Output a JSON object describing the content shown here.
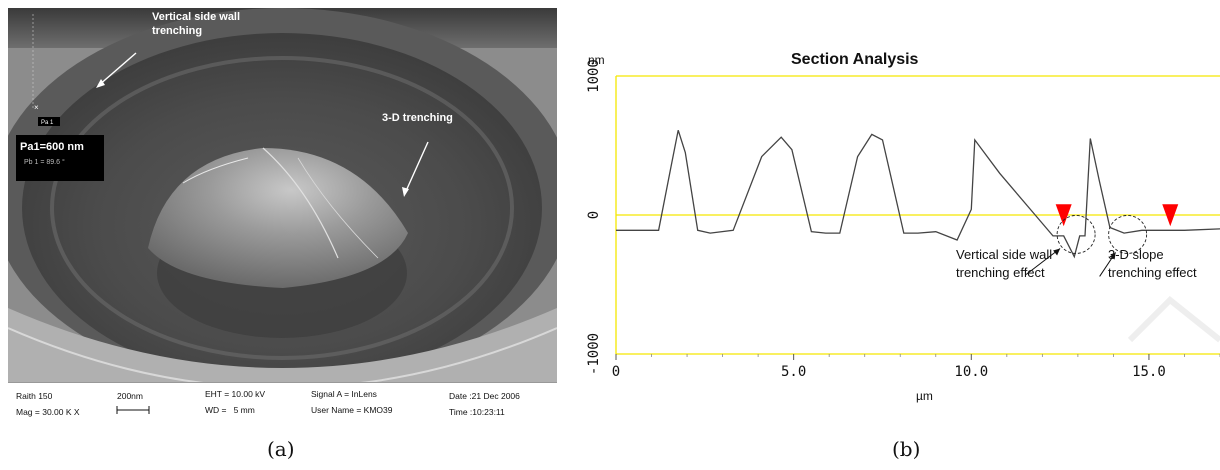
{
  "panel_a": {
    "caption": "(a)",
    "labels": {
      "vertical_trenching": "Vertical side wall\ntrenching",
      "trenching_3d": "3-D trenching",
      "pa_main": "Pa1=600 nm",
      "pa_sub": "Pb 1 = 89.6 °",
      "marker": "Pa 1"
    },
    "databar": {
      "instrument": "Raith 150",
      "mag": "Mag = 30.00 K X",
      "scale": "200nm",
      "eht": "EHT = 10.00 kV",
      "wd": "WD =   5 mm",
      "signal": "Signal A = InLens",
      "user": "User Name = KMO39",
      "date": "Date :21 Dec 2006",
      "time": "Time :10:23:11"
    }
  },
  "panel_b": {
    "caption": "(b)",
    "chart_data": {
      "type": "line",
      "title": "Section Analysis",
      "ylabel_unit": "nm",
      "xlabel": "µm",
      "xlim": [
        0,
        17
      ],
      "ylim": [
        -1000,
        1000
      ],
      "xticks": [
        "0",
        "5.0",
        "10.0",
        "15.0"
      ],
      "xtick_values": [
        0,
        5,
        10,
        15
      ],
      "yticks": [
        "1000",
        "0",
        "-1000"
      ],
      "ytick_values": [
        1000,
        0,
        -1000
      ],
      "series": [
        {
          "x": [
            0,
            1.2,
            1.55,
            1.75,
            1.95,
            2.3,
            2.65,
            3.3,
            4.1,
            4.65,
            4.95,
            5.5,
            5.9,
            6.3,
            6.8,
            7.2,
            7.5,
            8.1,
            8.5,
            9.0,
            9.6,
            10.0,
            10.1,
            10.8,
            11.8,
            12.3,
            12.6,
            12.9,
            13.05,
            13.2,
            13.35,
            13.6,
            13.9,
            14.3,
            14.8,
            16.0,
            17.0
          ],
          "y": [
            -110,
            -110,
            350,
            610,
            450,
            -110,
            -130,
            -110,
            420,
            560,
            470,
            -120,
            -130,
            -130,
            420,
            580,
            540,
            -130,
            -130,
            -120,
            -180,
            40,
            540,
            300,
            0,
            -150,
            -150,
            -300,
            -150,
            -150,
            550,
            250,
            -90,
            -130,
            -110,
            -110,
            -100
          ]
        }
      ],
      "markers_x": [
        12.6,
        15.6
      ],
      "circles_x": [
        12.95,
        14.4
      ],
      "annotations": [
        "Vertical side wall\ntrenching effect",
        "3-D slope\ntrenching effect"
      ],
      "colors": {
        "reference_lines": "#f5e800",
        "markers": "#ff0000",
        "trace": "#444444"
      }
    }
  }
}
